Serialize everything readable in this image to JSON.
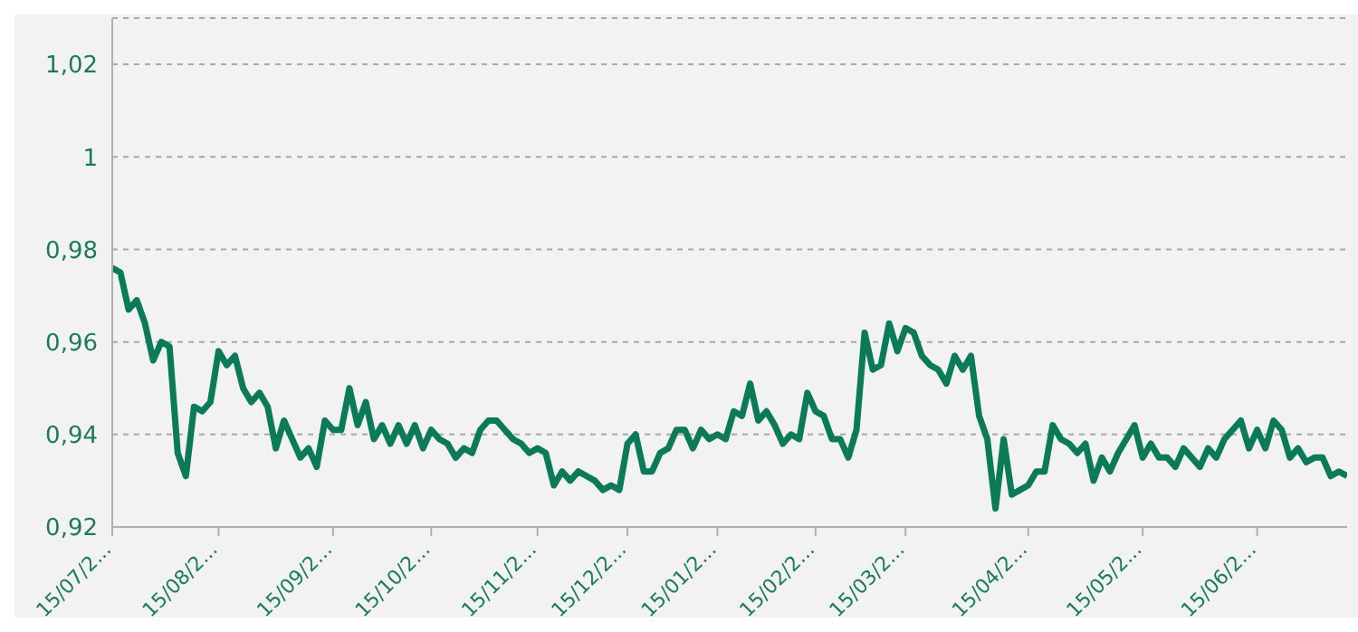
{
  "chart_data": {
    "type": "line",
    "categories": [
      "15/07/2...",
      null,
      null,
      null,
      null,
      null,
      null,
      null,
      null,
      null,
      null,
      null,
      null,
      "15/08/2...",
      null,
      null,
      null,
      null,
      null,
      null,
      null,
      null,
      null,
      null,
      null,
      null,
      null,
      "15/09/2...",
      null,
      null,
      null,
      null,
      null,
      null,
      null,
      null,
      null,
      null,
      null,
      "15/10/2...",
      null,
      null,
      null,
      null,
      null,
      null,
      null,
      null,
      null,
      null,
      null,
      null,
      "15/11/2...",
      null,
      null,
      null,
      null,
      null,
      null,
      null,
      null,
      null,
      null,
      "15/12/2...",
      null,
      null,
      null,
      null,
      null,
      null,
      null,
      null,
      null,
      null,
      "15/01/2...",
      null,
      null,
      null,
      null,
      null,
      null,
      null,
      null,
      null,
      null,
      null,
      "15/02/2...",
      null,
      null,
      null,
      null,
      null,
      null,
      null,
      null,
      null,
      null,
      "15/03/2...",
      null,
      null,
      null,
      null,
      null,
      null,
      null,
      null,
      null,
      null,
      null,
      null,
      null,
      null,
      "15/04/2...",
      null,
      null,
      null,
      null,
      null,
      null,
      null,
      null,
      null,
      null,
      null,
      null,
      null,
      "15/05/2...",
      null,
      null,
      null,
      null,
      null,
      null,
      null,
      null,
      null,
      null,
      null,
      null,
      null,
      "15/06/2...",
      null,
      null,
      null,
      null,
      null,
      null,
      null,
      null,
      null,
      null,
      null
    ],
    "series": [
      {
        "color": "#0b7a58",
        "values": [
          0.976,
          0.975,
          0.967,
          0.969,
          0.964,
          0.956,
          0.96,
          0.959,
          0.936,
          0.931,
          0.946,
          0.945,
          0.947,
          0.958,
          0.955,
          0.957,
          0.95,
          0.947,
          0.949,
          0.946,
          0.937,
          0.943,
          0.939,
          0.935,
          0.937,
          0.933,
          0.943,
          0.941,
          0.941,
          0.95,
          0.942,
          0.947,
          0.939,
          0.942,
          0.938,
          0.942,
          0.938,
          0.942,
          0.937,
          0.941,
          0.939,
          0.938,
          0.935,
          0.937,
          0.936,
          0.941,
          0.943,
          0.943,
          0.941,
          0.939,
          0.938,
          0.936,
          0.937,
          0.936,
          0.929,
          0.932,
          0.93,
          0.932,
          0.931,
          0.93,
          0.928,
          0.929,
          0.928,
          0.938,
          0.94,
          0.932,
          0.932,
          0.936,
          0.937,
          0.941,
          0.941,
          0.937,
          0.941,
          0.939,
          0.94,
          0.939,
          0.945,
          0.944,
          0.951,
          0.943,
          0.945,
          0.942,
          0.938,
          0.94,
          0.939,
          0.949,
          0.945,
          0.944,
          0.939,
          0.939,
          0.935,
          0.941,
          0.962,
          0.954,
          0.955,
          0.964,
          0.958,
          0.963,
          0.962,
          0.957,
          0.955,
          0.954,
          0.951,
          0.957,
          0.954,
          0.957,
          0.944,
          0.939,
          0.924,
          0.939,
          0.927,
          0.928,
          0.929,
          0.932,
          0.932,
          0.942,
          0.939,
          0.938,
          0.936,
          0.938,
          0.93,
          0.935,
          0.932,
          0.936,
          0.939,
          0.942,
          0.935,
          0.938,
          0.935,
          0.935,
          0.933,
          0.937,
          0.935,
          0.933,
          0.937,
          0.935,
          0.939,
          0.941,
          0.943,
          0.937,
          0.941,
          0.937,
          0.943,
          0.941,
          0.935,
          0.937,
          0.934,
          0.935,
          0.935,
          0.931,
          0.932,
          0.931
        ]
      }
    ],
    "ylim": [
      0.92,
      1.03
    ],
    "yticks": [
      {
        "value": 0.92,
        "label": "0,92"
      },
      {
        "value": 0.94,
        "label": "0,94"
      },
      {
        "value": 0.96,
        "label": "0,96"
      },
      {
        "value": 0.98,
        "label": "0,98"
      },
      {
        "value": 1,
        "label": "1"
      },
      {
        "value": 1.02,
        "label": "1,02"
      }
    ],
    "grid": "y",
    "legend": false,
    "marker": "none",
    "line_style": "solid"
  }
}
